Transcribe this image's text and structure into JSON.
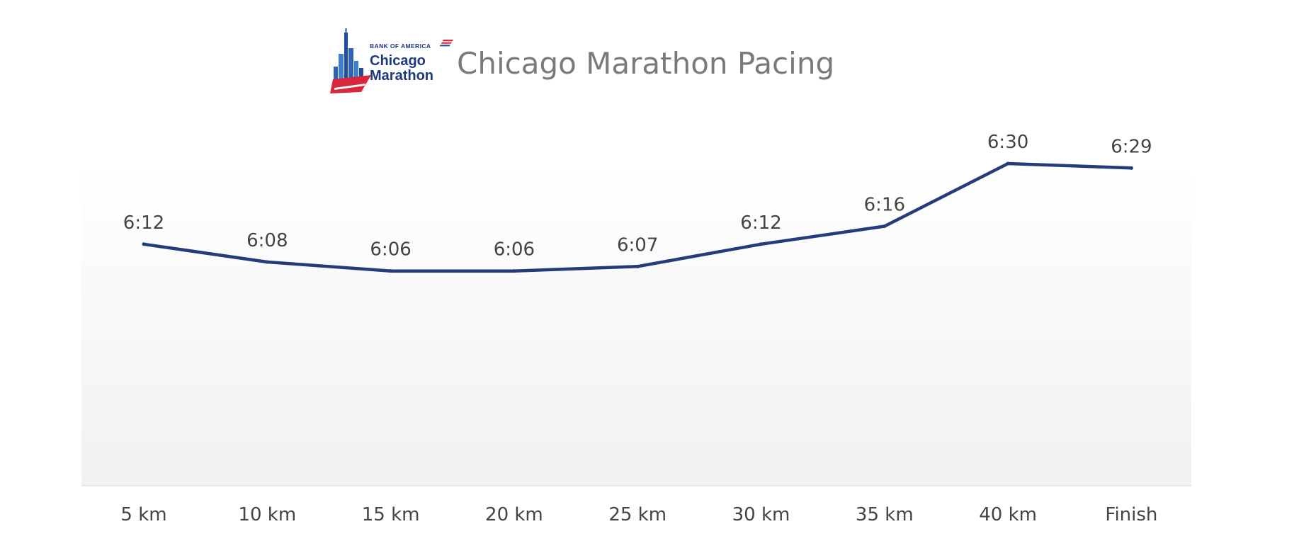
{
  "header": {
    "title": "Chicago Marathon Pacing",
    "logo": {
      "sponsor_text": "BANK OF AMERICA",
      "line1": "Chicago",
      "line2": "Marathon",
      "icon": "chicago-skyline-logo-icon",
      "colors": {
        "blue": "#1f4e9c",
        "light_blue": "#3f7fd1",
        "red": "#d9263b",
        "navy": "#1f3a7a"
      }
    }
  },
  "chart_data": {
    "type": "line",
    "title": "Chicago Marathon Pacing",
    "xlabel": "",
    "ylabel": "",
    "categories": [
      "5 km",
      "10 km",
      "15 km",
      "20 km",
      "25 km",
      "30 km",
      "35 km",
      "40 km",
      "Finish"
    ],
    "series": [
      {
        "values": [
          372,
          368,
          366,
          366,
          367,
          372,
          376,
          390,
          389
        ],
        "labels": [
          "6:12",
          "6:08",
          "6:06",
          "6:06",
          "6:07",
          "6:12",
          "6:16",
          "6:30",
          "6:29"
        ],
        "color": "#263b7a"
      }
    ],
    "value_unit": "seconds per km",
    "ylim": [
      318,
      390
    ],
    "grid": false,
    "legend": "none",
    "plot_background": "gradient-light-grey"
  }
}
